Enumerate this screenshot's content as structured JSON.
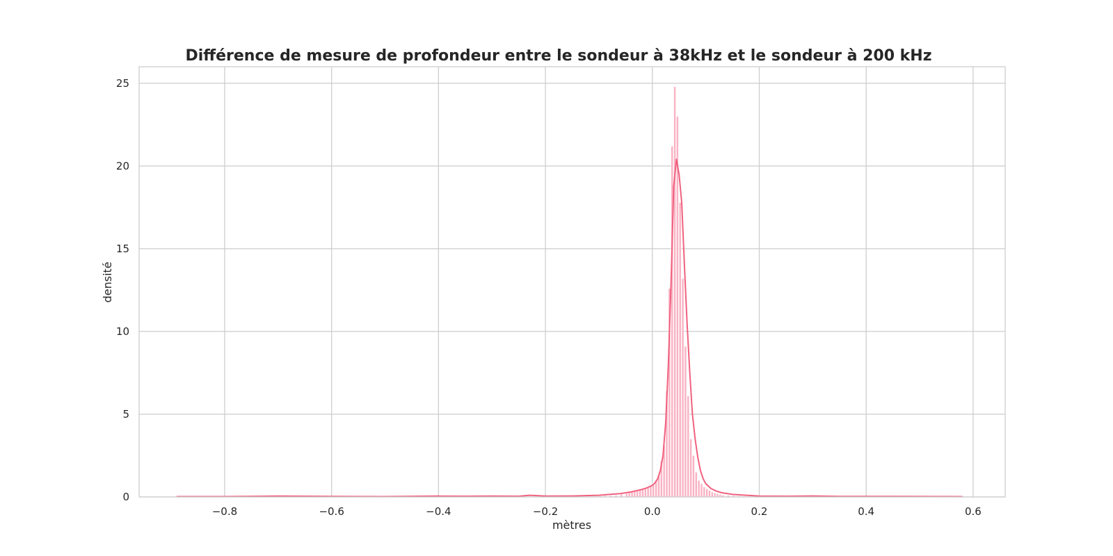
{
  "chart_data": {
    "type": "bar",
    "overlay": "kde-line",
    "title": "Différence de mesure de profondeur entre le sondeur à 38kHz et le sondeur à 200 kHz",
    "xlabel": "mètres",
    "ylabel": "densité",
    "xlim": [
      -0.96,
      0.66
    ],
    "ylim": [
      0,
      26
    ],
    "xticks": [
      -0.8,
      -0.6,
      -0.4,
      -0.2,
      0.0,
      0.2,
      0.4,
      0.6
    ],
    "xtick_labels": [
      "−0.8",
      "−0.6",
      "−0.4",
      "−0.2",
      "0.0",
      "0.2",
      "0.4",
      "0.6"
    ],
    "yticks": [
      0,
      5,
      10,
      15,
      20,
      25
    ],
    "ytick_labels": [
      "0",
      "5",
      "10",
      "15",
      "20",
      "25"
    ],
    "grid": true,
    "colors": {
      "bar": "#f9b3c4",
      "line": "#f0617f",
      "grid": "#cccccc",
      "frame": "#cccccc"
    },
    "bin_width": 0.005,
    "histogram": {
      "x": [
        -0.1,
        -0.09,
        -0.08,
        -0.07,
        -0.06,
        -0.05,
        -0.045,
        -0.04,
        -0.035,
        -0.03,
        -0.025,
        -0.02,
        -0.015,
        -0.01,
        -0.005,
        0.0,
        0.005,
        0.01,
        0.015,
        0.02,
        0.025,
        0.03,
        0.035,
        0.04,
        0.045,
        0.05,
        0.055,
        0.06,
        0.065,
        0.07,
        0.075,
        0.08,
        0.085,
        0.09,
        0.095,
        0.1,
        0.105,
        0.11,
        0.115,
        0.12,
        0.125,
        0.13,
        0.14,
        0.15,
        0.16,
        0.17,
        0.18,
        0.19
      ],
      "density": [
        0.05,
        0.07,
        0.08,
        0.1,
        0.15,
        0.2,
        0.25,
        0.3,
        0.35,
        0.4,
        0.45,
        0.5,
        0.55,
        0.6,
        0.7,
        0.8,
        1.0,
        1.3,
        2.2,
        3.1,
        6.4,
        12.6,
        21.2,
        24.8,
        23.0,
        17.8,
        13.2,
        9.1,
        6.1,
        3.5,
        2.5,
        1.5,
        1.0,
        0.8,
        0.6,
        0.5,
        0.4,
        0.3,
        0.25,
        0.2,
        0.15,
        0.12,
        0.1,
        0.08,
        0.06,
        0.05,
        0.04,
        0.03
      ]
    },
    "kde": {
      "x": [
        -0.89,
        -0.8,
        -0.7,
        -0.6,
        -0.5,
        -0.4,
        -0.35,
        -0.3,
        -0.25,
        -0.23,
        -0.2,
        -0.15,
        -0.1,
        -0.08,
        -0.06,
        -0.04,
        -0.02,
        -0.01,
        0.0,
        0.005,
        0.01,
        0.015,
        0.02,
        0.025,
        0.03,
        0.035,
        0.04,
        0.045,
        0.05,
        0.055,
        0.06,
        0.065,
        0.07,
        0.075,
        0.08,
        0.085,
        0.09,
        0.095,
        0.1,
        0.11,
        0.12,
        0.13,
        0.15,
        0.2,
        0.25,
        0.3,
        0.35,
        0.45,
        0.58
      ],
      "density": [
        0.02,
        0.02,
        0.05,
        0.03,
        0.02,
        0.05,
        0.04,
        0.05,
        0.04,
        0.1,
        0.05,
        0.06,
        0.1,
        0.15,
        0.2,
        0.3,
        0.45,
        0.55,
        0.7,
        0.85,
        1.1,
        1.6,
        2.5,
        4.5,
        8.0,
        13.0,
        18.8,
        20.4,
        19.5,
        17.8,
        14.0,
        10.5,
        7.5,
        5.0,
        3.5,
        2.4,
        1.6,
        1.1,
        0.8,
        0.5,
        0.35,
        0.25,
        0.15,
        0.05,
        0.04,
        0.06,
        0.03,
        0.03,
        0.02
      ]
    }
  }
}
